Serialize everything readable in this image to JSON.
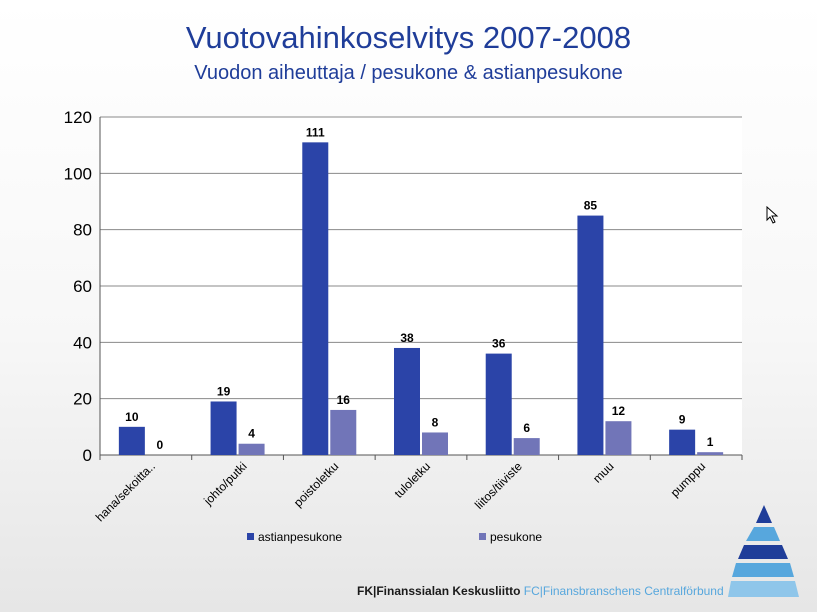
{
  "chart_data": {
    "type": "bar",
    "title": "Vuotovahinkoselvitys 2007-2008",
    "subtitle": "Vuodon aiheuttaja / pesukone & astianpesukone",
    "categories": [
      "hana/sekoitta..",
      "johto/putki",
      "poistoletku",
      "tuloletku",
      "liitos/tiiviste",
      "muu",
      "pumppu"
    ],
    "series": [
      {
        "name": "astianpesukone",
        "color": "#2b44a8",
        "values": [
          10,
          19,
          111,
          38,
          36,
          85,
          9
        ]
      },
      {
        "name": "pesukone",
        "color": "#7175b8",
        "values": [
          0,
          4,
          16,
          8,
          6,
          12,
          1
        ]
      }
    ],
    "ylim": [
      0,
      120
    ],
    "yticks": [
      0,
      20,
      40,
      60,
      80,
      100,
      120
    ],
    "grid": true,
    "legend": "bottom"
  },
  "footer": {
    "fk_text": "FK|Finanssialan Keskusliitto",
    "fc_text": "FC|Finansbranschens Centralförbund"
  }
}
